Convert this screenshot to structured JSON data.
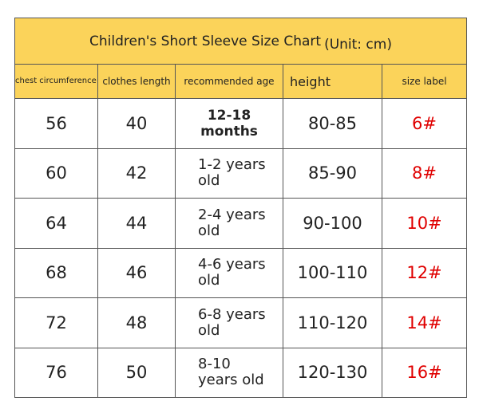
{
  "header": {
    "title": "Children's Short Sleeve Size Chart",
    "unit": "(Unit: cm)"
  },
  "table": {
    "columns": [
      "chest circumference",
      "clothes length",
      "recommended age",
      "height",
      "size label"
    ],
    "rows": [
      [
        56,
        40,
        "12-18 months",
        "80-85",
        "6#"
      ],
      [
        60,
        42,
        "1-2 years old",
        "85-90",
        "8#"
      ],
      [
        64,
        44,
        "2-4 years old",
        "90-100",
        "10#"
      ],
      [
        68,
        46,
        "4-6 years old",
        "100-110",
        "12#"
      ],
      [
        72,
        48,
        "6-8 years old",
        "110-120",
        "14#"
      ],
      [
        76,
        50,
        "8-10 years old",
        "120-130",
        "16#"
      ]
    ]
  }
}
